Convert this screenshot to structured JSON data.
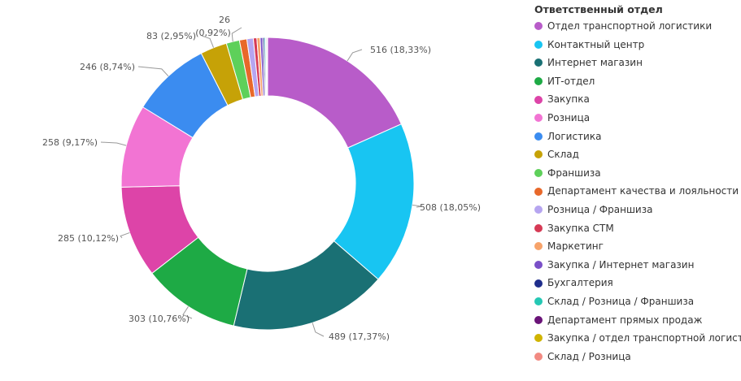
{
  "chart_data": {
    "type": "pie",
    "legend_title": "Ответственный отдел",
    "legend_position": "right",
    "slices": [
      {
        "name": "Отдел транспортной логистики",
        "value": 516,
        "label": "516 (18,33%)",
        "color": "#B85CC9"
      },
      {
        "name": "Контактный центр",
        "value": 508,
        "label": "508 (18,05%)",
        "color": "#18C5F2"
      },
      {
        "name": "Интернет магазин",
        "value": 489,
        "label": "489 (17,37%)",
        "color": "#1A7074"
      },
      {
        "name": "ИТ-отдел",
        "value": 303,
        "label": "303 (10,76%)",
        "color": "#1EAA45"
      },
      {
        "name": "Закупка",
        "value": 285,
        "label": "285 (10,12%)",
        "color": "#DD44A8"
      },
      {
        "name": "Розница",
        "value": 258,
        "label": "258 (9,17%)",
        "color": "#F274D3"
      },
      {
        "name": "Логистика",
        "value": 246,
        "label": "246 (8,74%)",
        "color": "#3B8CF0"
      },
      {
        "name": "Склад",
        "value": 83,
        "label": "83 (2,95%)",
        "color": "#C6A207"
      },
      {
        "name": "Франшиза",
        "value": 41,
        "label": "",
        "color": "#5ED05A"
      },
      {
        "name": "Департамент качества и лояльности",
        "value": 23,
        "label": "",
        "color": "#E8682A"
      },
      {
        "name": "Розница / Франшиза",
        "value": 20,
        "label": "",
        "color": "#B6A5F0"
      },
      {
        "name": "Закупка СТМ",
        "value": 11,
        "label": "",
        "color": "#D63A55"
      },
      {
        "name": "Маркетинг",
        "value": 10,
        "label": "",
        "color": "#F7A36A"
      },
      {
        "name": "Закупка / Интернет магазин",
        "value": 8,
        "label": "",
        "color": "#7A50C8"
      },
      {
        "name": "Бухгалтерия",
        "value": 5,
        "label": "",
        "color": "#1F2E8C"
      },
      {
        "name": "Склад / Розница / Франшиза",
        "value": 4,
        "label": "",
        "color": "#25C8B4"
      },
      {
        "name": "Департамент прямых продаж",
        "value": 3,
        "label": "",
        "color": "#6A1478"
      },
      {
        "name": "Закупка / отдел транспортной логистики",
        "value": 2,
        "label": "",
        "color": "#D0B400"
      },
      {
        "name": "Склад / Розница",
        "value": 1,
        "label": "",
        "color": "#F28A82"
      }
    ],
    "extra_label": {
      "line1": "26",
      "line2": "(0,92%)"
    }
  }
}
